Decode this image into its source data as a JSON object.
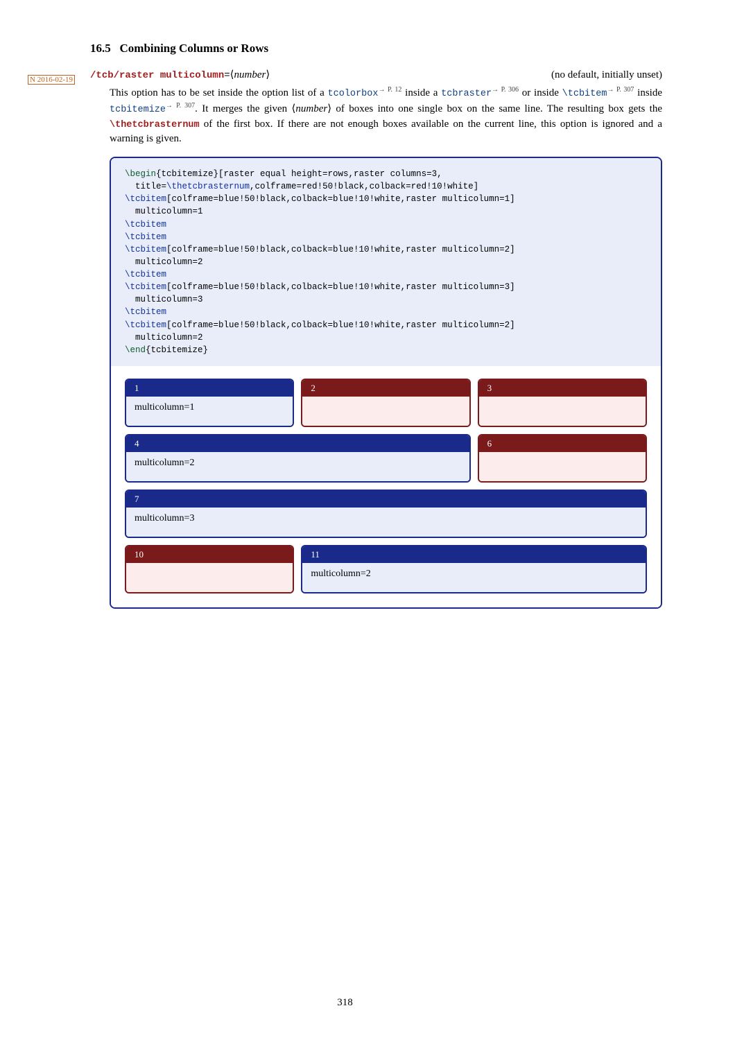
{
  "section": {
    "number": "16.5",
    "title": "Combining Columns or Rows"
  },
  "margin_note": "N 2016-02-19",
  "key": {
    "name": "/tcb/raster multicolumn",
    "eq": "=",
    "arg": "number",
    "default_text": "(no default, initially unset)"
  },
  "desc": {
    "t1": "This option has to be set inside the option list of a ",
    "tcolorbox": "tcolorbox",
    "tcolorbox_ref": "→ P. 12",
    "t2": " inside a ",
    "tcbraster": "tcbraster",
    "tcbraster_ref": "→ P. 306",
    "t3": " or inside ",
    "tcbitem": "\\tcbitem",
    "tcbitem_ref": "→ P. 307",
    "t4": " inside ",
    "tcbitemize": "tcbitemize",
    "tcbitemize_ref": "→ P. 307",
    "t5": ". It merges the given ⟨",
    "arg": "number",
    "t6": "⟩ of boxes into one single box on the same line. The resulting box gets the ",
    "thetcbrasternum": "\\thetcbrasternum",
    "t7": " of the first box. If there are not enough boxes available on the current line, this option is ignored and a warning is given."
  },
  "code": {
    "l01a": "\\begin",
    "l01b": "{tcbitemize}[raster equal height=rows,raster columns=3,",
    "l02a": "  title=",
    "l02b": "\\thetcbrasternum",
    "l02c": ",colframe=red!50!black,colback=red!10!white]",
    "l03a": "\\tcbitem",
    "l03b": "[colframe=blue!50!black,colback=blue!10!white,raster multicolumn=1]",
    "l04": "  multicolumn=1",
    "l05": "\\tcbitem",
    "l06": "\\tcbitem",
    "l07a": "\\tcbitem",
    "l07b": "[colframe=blue!50!black,colback=blue!10!white,raster multicolumn=2]",
    "l08": "  multicolumn=2",
    "l09": "\\tcbitem",
    "l10a": "\\tcbitem",
    "l10b": "[colframe=blue!50!black,colback=blue!10!white,raster multicolumn=3]",
    "l11": "  multicolumn=3",
    "l12": "\\tcbitem",
    "l13a": "\\tcbitem",
    "l13b": "[colframe=blue!50!black,colback=blue!10!white,raster multicolumn=2]",
    "l14": "  multicolumn=2",
    "l15a": "\\end",
    "l15b": "{tcbitemize}"
  },
  "raster": {
    "columns": 3,
    "gap": 10,
    "colors": {
      "red_frame": "#7a1a1a",
      "red_back": "#fcecec",
      "blue_frame": "#1a2a8a",
      "blue_back": "#e9edfa",
      "title_text": "#ffffff"
    },
    "boxes": [
      {
        "num": "1",
        "span": 1,
        "style": "blue",
        "body": "multicolumn=1"
      },
      {
        "num": "2",
        "span": 1,
        "style": "red",
        "body": ""
      },
      {
        "num": "3",
        "span": 1,
        "style": "red",
        "body": ""
      },
      {
        "num": "4",
        "span": 2,
        "style": "blue",
        "body": "multicolumn=2"
      },
      {
        "num": "6",
        "span": 1,
        "style": "red",
        "body": ""
      },
      {
        "num": "7",
        "span": 3,
        "style": "blue",
        "body": "multicolumn=3"
      },
      {
        "num": "10",
        "span": 1,
        "style": "red",
        "body": ""
      },
      {
        "num": "11",
        "span": 2,
        "style": "blue",
        "body": "multicolumn=2"
      }
    ]
  },
  "page_number": "318"
}
